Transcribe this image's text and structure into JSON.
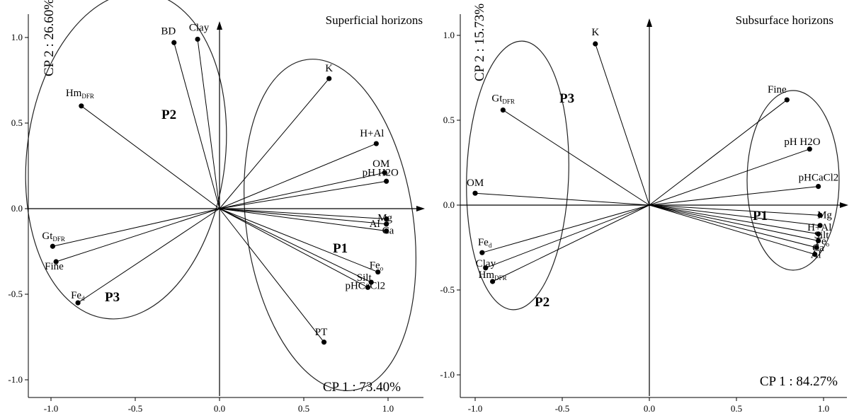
{
  "chart_data": [
    {
      "type": "scatter",
      "title": "Superficial horizons",
      "xlabel": "CP 1 : 73.40%",
      "ylabel": "CP 2 : 26.60%",
      "xlim": [
        -1.1,
        1.05
      ],
      "ylim": [
        -1.1,
        1.12
      ],
      "x_ticks": [
        -1.0,
        -0.5,
        0.0,
        0.5,
        1.0
      ],
      "y_ticks": [
        1.0,
        0.5,
        0.0,
        -0.5,
        -1.0
      ],
      "tick_labels": {
        "x": [
          "-1.0",
          "-0.5",
          "0.0",
          "0.5",
          "1.0"
        ],
        "y": [
          "1.0",
          "0.5",
          "0.0",
          "-0.5",
          "-1.0"
        ]
      },
      "grid": false,
      "points": [
        {
          "label": "BD",
          "x": -0.27,
          "y": 0.97
        },
        {
          "label": "Clay",
          "x": -0.13,
          "y": 0.99
        },
        {
          "label": "Hm",
          "sub": "DFR",
          "x": -0.82,
          "y": 0.6
        },
        {
          "label": "K",
          "x": 0.65,
          "y": 0.76
        },
        {
          "label": "H+Al",
          "x": 0.93,
          "y": 0.38
        },
        {
          "label": "OM",
          "x": 0.98,
          "y": 0.21
        },
        {
          "label": "pH H2O",
          "x": 0.99,
          "y": 0.16
        },
        {
          "label": "Mg",
          "x": 0.99,
          "y": -0.06
        },
        {
          "label": "Al",
          "x": 0.99,
          "y": -0.09
        },
        {
          "label": "Ca",
          "x": 0.99,
          "y": -0.13
        },
        {
          "label": "Fe",
          "sub": "o",
          "x": 0.94,
          "y": -0.37
        },
        {
          "label": "Silt",
          "x": 0.9,
          "y": -0.43
        },
        {
          "label": "pHCaCl2",
          "x": 0.88,
          "y": -0.46
        },
        {
          "label": "PT",
          "x": 0.62,
          "y": -0.78
        },
        {
          "label": "Gt",
          "sub": "DFR",
          "x": -0.99,
          "y": -0.22
        },
        {
          "label": "Fine",
          "x": -0.97,
          "y": -0.31
        },
        {
          "label": "Fe",
          "sub": "d",
          "x": -0.84,
          "y": -0.55
        }
      ],
      "groups": [
        "P1",
        "P2",
        "P3"
      ]
    },
    {
      "type": "scatter",
      "title": "Subsurface horizons",
      "xlabel": "CP 1 : 84.27%",
      "ylabel": "CP 2 : 15.73%",
      "xlim": [
        -1.1,
        1.05
      ],
      "ylim": [
        -1.1,
        1.12
      ],
      "x_ticks": [
        -1.0,
        -0.5,
        0.0,
        0.5,
        1.0
      ],
      "y_ticks": [
        1.0,
        0.5,
        0.0,
        -0.5,
        -1.0
      ],
      "tick_labels": {
        "x": [
          "-1.0",
          "-0.5",
          "0.0",
          "0.5",
          "1.0"
        ],
        "y": [
          "1.0",
          "0.5",
          "0.0",
          "-0.5",
          "-1.0"
        ]
      },
      "grid": false,
      "points": [
        {
          "label": "K",
          "x": -0.31,
          "y": 0.95
        },
        {
          "label": "Gt",
          "sub": "DFR",
          "x": -0.84,
          "y": 0.56
        },
        {
          "label": "OM",
          "x": -1.0,
          "y": 0.07
        },
        {
          "label": "Fine",
          "x": 0.79,
          "y": 0.62
        },
        {
          "label": "pH H2O",
          "x": 0.92,
          "y": 0.33
        },
        {
          "label": "pHCaCl2",
          "x": 0.97,
          "y": 0.11
        },
        {
          "label": "Mg",
          "x": 0.98,
          "y": -0.06
        },
        {
          "label": "H+Al",
          "x": 0.98,
          "y": -0.12
        },
        {
          "label": "Silt",
          "x": 0.97,
          "y": -0.17
        },
        {
          "label": "Fe",
          "sub": "o",
          "x": 0.97,
          "y": -0.21
        },
        {
          "label": "Ca",
          "x": 0.96,
          "y": -0.25
        },
        {
          "label": "Al",
          "x": 0.95,
          "y": -0.29
        },
        {
          "label": "Fe",
          "sub": "d",
          "x": -0.96,
          "y": -0.28
        },
        {
          "label": "Clay",
          "x": -0.94,
          "y": -0.37
        },
        {
          "label": "Hm",
          "sub": "DFR",
          "x": -0.9,
          "y": -0.45
        }
      ],
      "groups": [
        "P1",
        "P2",
        "P3"
      ]
    }
  ]
}
